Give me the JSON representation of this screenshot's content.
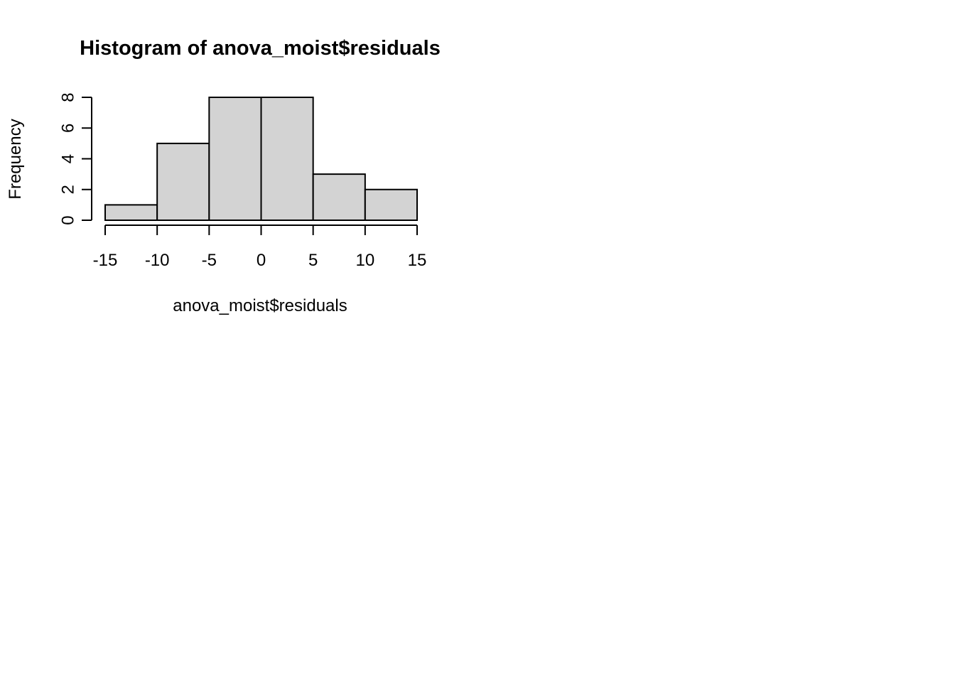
{
  "chart_data": {
    "type": "bar",
    "title": "Histogram of anova_moist$residuals",
    "xlabel": "anova_moist$residuals",
    "ylabel": "Frequency",
    "bins": [
      {
        "from": -15,
        "to": -10,
        "count": 1
      },
      {
        "from": -10,
        "to": -5,
        "count": 5
      },
      {
        "from": -5,
        "to": 0,
        "count": 8
      },
      {
        "from": 0,
        "to": 5,
        "count": 8
      },
      {
        "from": 5,
        "to": 10,
        "count": 3
      },
      {
        "from": 10,
        "to": 15,
        "count": 2
      }
    ],
    "xlim": [
      -15,
      15
    ],
    "ylim": [
      0,
      8
    ],
    "x_ticks": [
      "-15",
      "-10",
      "-5",
      "0",
      "5",
      "10",
      "15"
    ],
    "y_ticks": [
      "0",
      "2",
      "4",
      "6",
      "8"
    ],
    "bar_fill": "#d3d3d3",
    "bar_stroke": "#000000",
    "grid": false
  }
}
